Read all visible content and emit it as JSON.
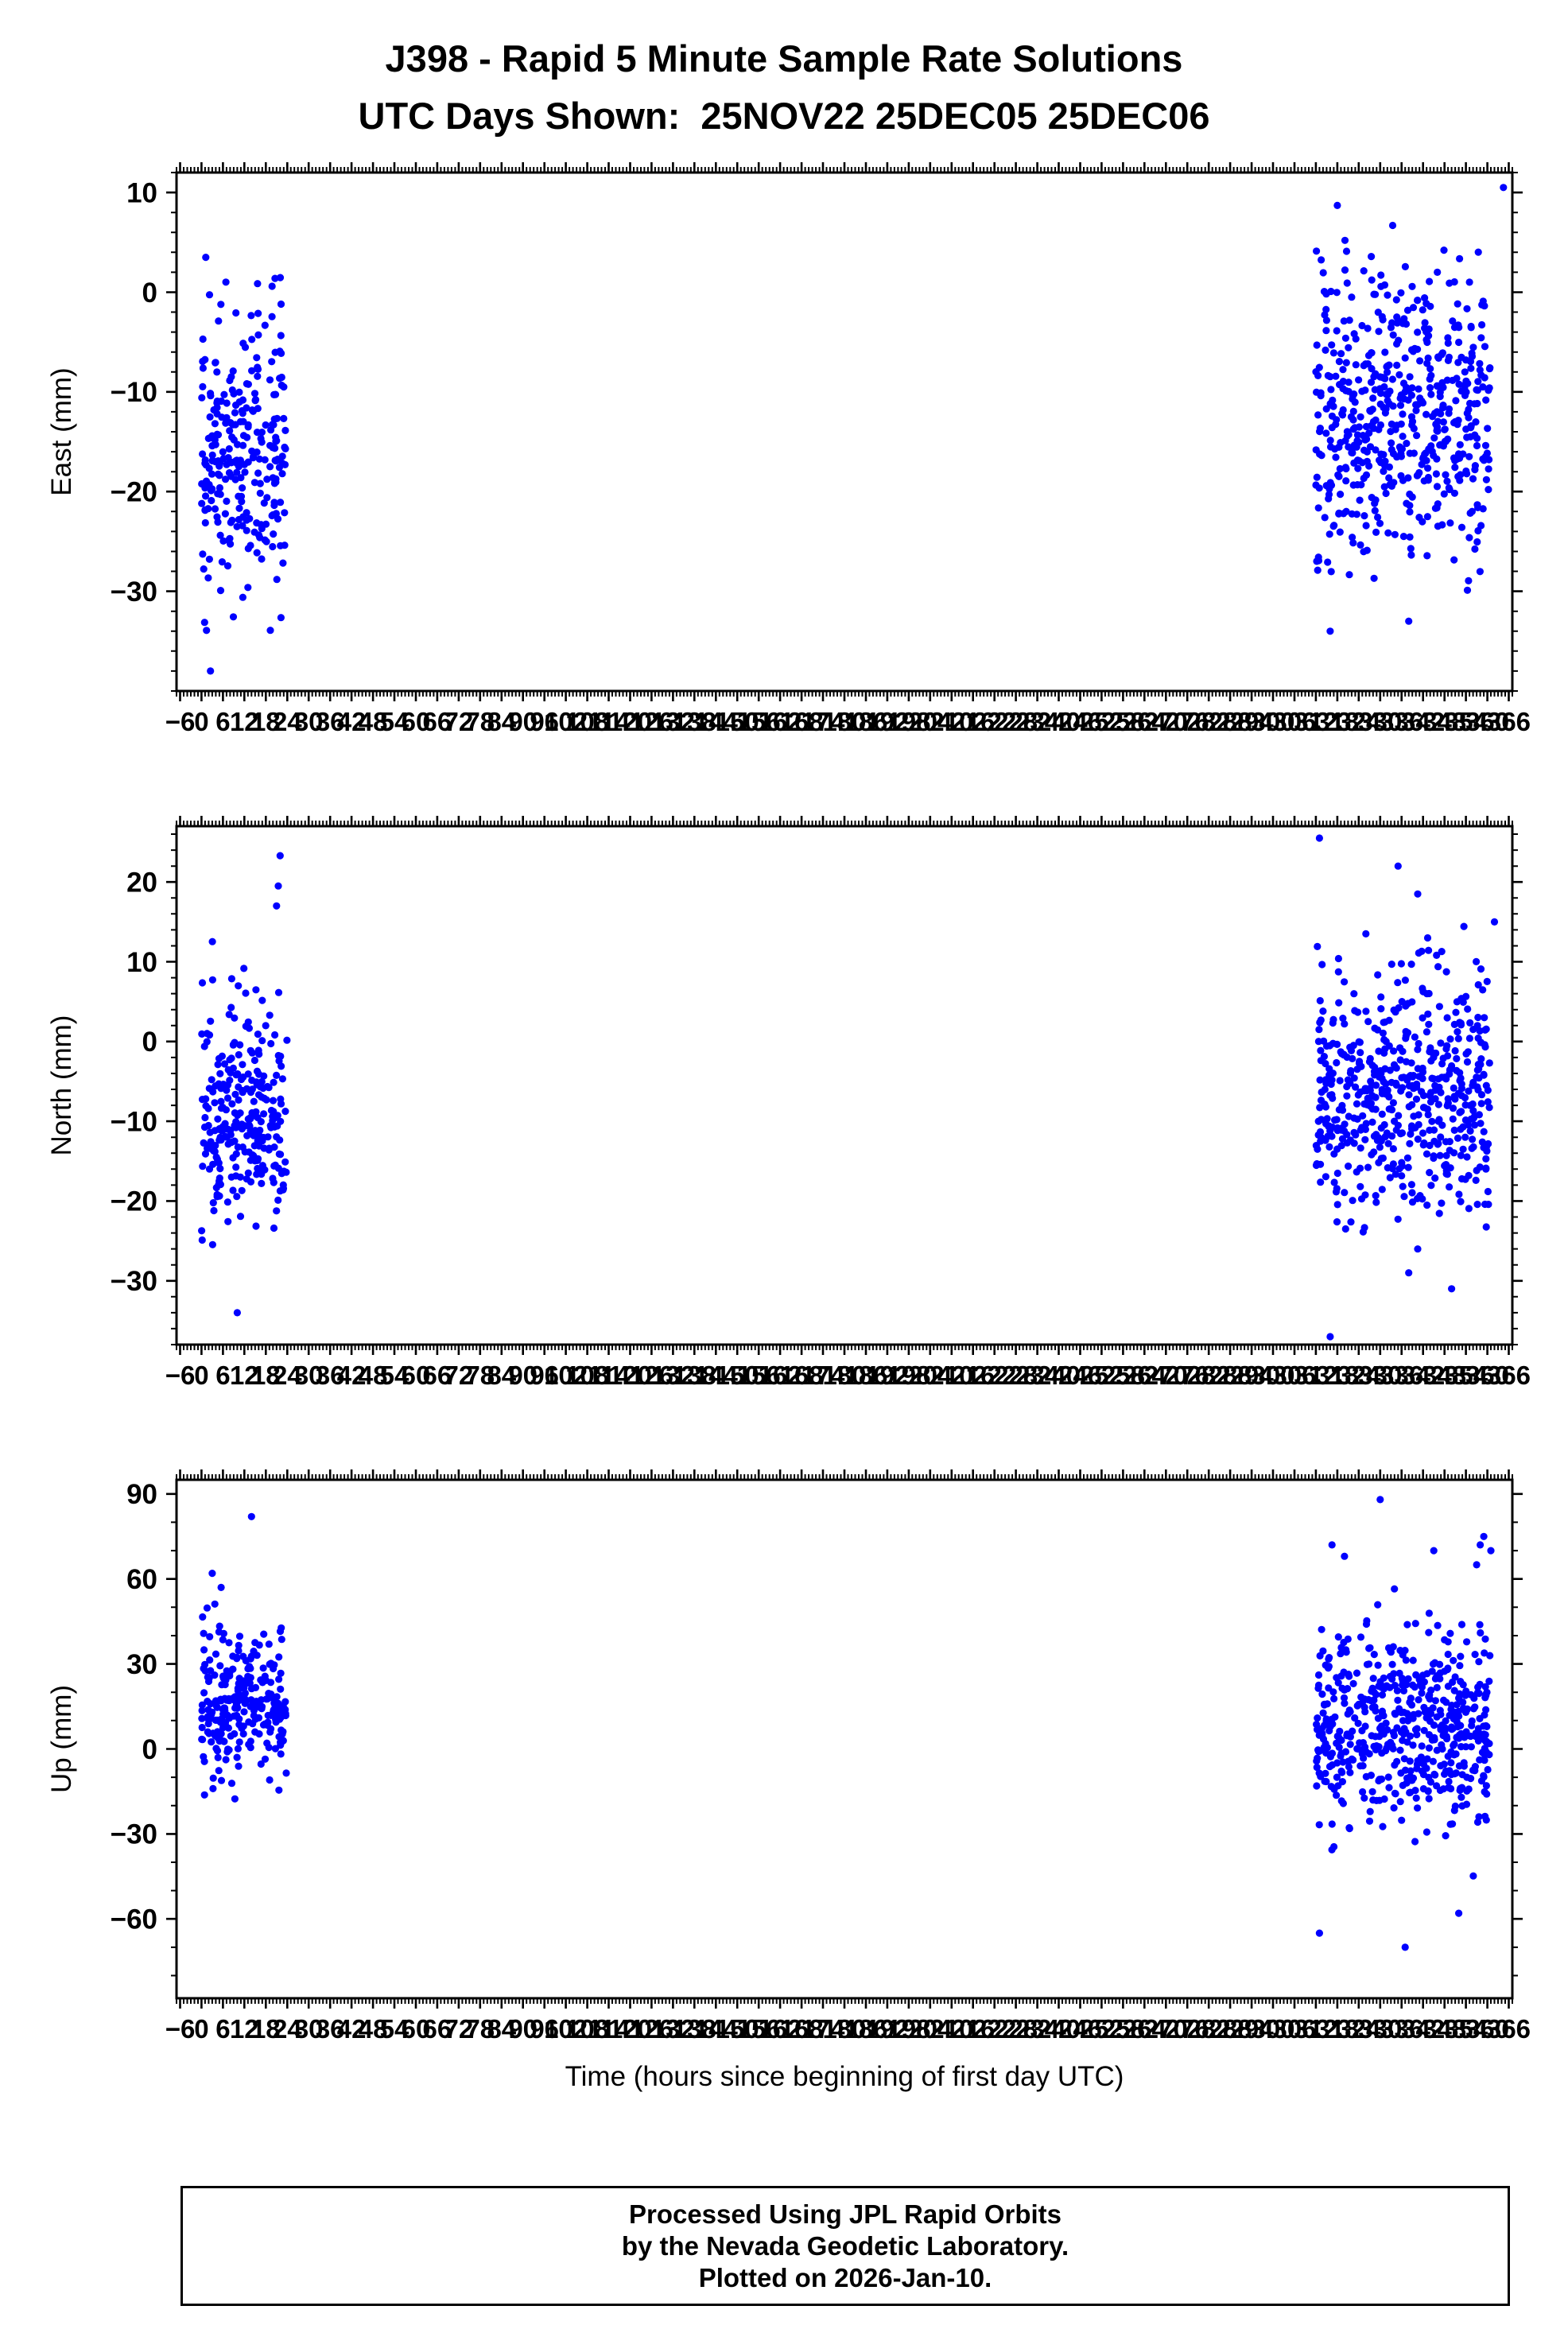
{
  "title": {
    "line1": "J398 - Rapid 5 Minute Sample Rate Solutions",
    "line2": "UTC Days Shown:  25NOV22 25DEC05 25DEC06"
  },
  "xlabel": "Time (hours since beginning of first day UTC)",
  "footer": {
    "line1": "Processed Using JPL Rapid Orbits",
    "line2": "by the Nevada Geodetic Laboratory.",
    "line3": "Plotted on 2026-Jan-10."
  },
  "render": {
    "seed": 1337,
    "point_color": "#0000ff",
    "point_radius": 4.6,
    "axis_color": "#000000"
  },
  "chart_data": [
    {
      "type": "scatter",
      "name": "east",
      "ylabel": "East (mm)",
      "ylim": [
        -40,
        12
      ],
      "yticks": [
        10,
        0,
        -10,
        -20,
        -30
      ],
      "y_minor_step": 2,
      "xlim": [
        -7,
        367
      ],
      "xtick_start": -6,
      "xtick_end": 366,
      "xtick_step": 6,
      "x_minor_step": 1,
      "clusters": [
        {
          "x_range": [
            0,
            24
          ],
          "n": 270,
          "y_mean": -16,
          "y_std": 7.5,
          "y_clip": [
            -36,
            4
          ]
        },
        {
          "x_range": [
            312,
            360.8
          ],
          "n": 540,
          "y_mean": -13,
          "y_std": 7,
          "y_clip": [
            -32,
            6
          ]
        }
      ],
      "extra_points": [
        [
          1.2,
          3.5
        ],
        [
          318,
          8.7
        ],
        [
          333.5,
          6.7
        ],
        [
          364.5,
          10.5
        ],
        [
          316,
          -34
        ],
        [
          338,
          -33
        ],
        [
          2.5,
          -38
        ],
        [
          346,
          2.0
        ],
        [
          355,
          1.0
        ],
        [
          322,
          -0.5
        ]
      ]
    },
    {
      "type": "scatter",
      "name": "north",
      "ylabel": "North (mm)",
      "ylim": [
        -38,
        27
      ],
      "yticks": [
        20,
        10,
        0,
        -10,
        -20,
        -30
      ],
      "y_minor_step": 2,
      "xlim": [
        -7,
        367
      ],
      "xtick_start": -6,
      "xtick_end": 366,
      "xtick_step": 6,
      "x_minor_step": 1,
      "clusters": [
        {
          "x_range": [
            0,
            24
          ],
          "n": 270,
          "y_mean": -9,
          "y_std": 7,
          "y_clip": [
            -28,
            13
          ]
        },
        {
          "x_range": [
            312,
            360.8
          ],
          "n": 540,
          "y_mean": -7,
          "y_std": 7.5,
          "y_clip": [
            -30,
            15
          ]
        }
      ],
      "extra_points": [
        [
          22,
          23.3
        ],
        [
          21.5,
          19.5
        ],
        [
          21,
          17
        ],
        [
          10,
          -34
        ],
        [
          313,
          25.5
        ],
        [
          335,
          22
        ],
        [
          340.5,
          18.5
        ],
        [
          316,
          -37
        ],
        [
          350,
          -31
        ],
        [
          362,
          15
        ],
        [
          338,
          -29
        ],
        [
          326,
          13.5
        ]
      ]
    },
    {
      "type": "scatter",
      "name": "up",
      "ylabel": "Up (mm)",
      "ylim": [
        -88,
        95
      ],
      "yticks": [
        90,
        60,
        30,
        0,
        -30,
        -60
      ],
      "y_minor_step": 10,
      "xlim": [
        -7,
        367
      ],
      "xtick_start": -6,
      "xtick_end": 366,
      "xtick_step": 6,
      "x_minor_step": 1,
      "clusters": [
        {
          "x_range": [
            0,
            24
          ],
          "n": 270,
          "y_mean": 15,
          "y_std": 13,
          "y_clip": [
            -22,
            55
          ]
        },
        {
          "x_range": [
            312,
            360.8
          ],
          "n": 540,
          "y_mean": 8,
          "y_std": 17,
          "y_clip": [
            -45,
            62
          ]
        }
      ],
      "extra_points": [
        [
          14,
          82
        ],
        [
          3,
          62
        ],
        [
          5.5,
          57
        ],
        [
          330,
          88
        ],
        [
          316.5,
          72
        ],
        [
          345,
          70
        ],
        [
          358,
          72
        ],
        [
          313,
          -65
        ],
        [
          337,
          -70
        ],
        [
          352,
          -58
        ],
        [
          361,
          70
        ],
        [
          357,
          65
        ],
        [
          359,
          75
        ],
        [
          320,
          68
        ]
      ]
    }
  ]
}
